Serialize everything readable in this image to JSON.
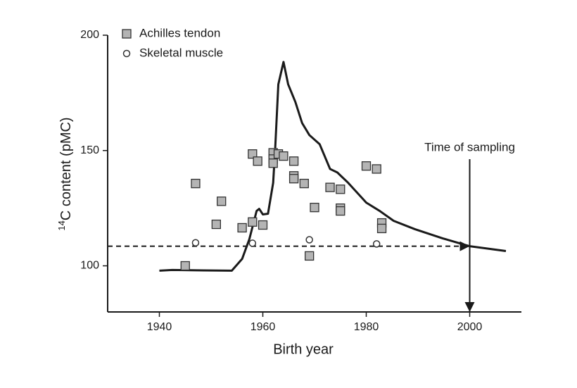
{
  "chart_data": {
    "type": "scatter",
    "x_label": "Birth year",
    "y_label": {
      "superscript": "14",
      "text": "C content (pMC)"
    },
    "xlim": [
      1930,
      2010
    ],
    "ylim": [
      80,
      200
    ],
    "xticks": [
      1940,
      1960,
      1980,
      2000
    ],
    "yticks": [
      100,
      150,
      200
    ],
    "legend": "upper left",
    "series": [
      {
        "name": "Achilles tendon",
        "marker": "square",
        "color": "#b4b4b4",
        "x": [
          1945,
          1947,
          1951,
          1952,
          1956,
          1958,
          1958,
          1959,
          1960,
          1962,
          1962,
          1962,
          1963,
          1964,
          1966,
          1966,
          1966,
          1968,
          1969,
          1970,
          1973,
          1975,
          1975,
          1975,
          1980,
          1982,
          1983,
          1983
        ],
        "values": [
          100,
          135.7,
          118,
          128,
          116.5,
          148.5,
          119,
          145.4,
          117.7,
          149,
          146.3,
          144.5,
          148.5,
          147.6,
          145.4,
          139,
          137.8,
          135.7,
          104.3,
          125.3,
          134,
          133.2,
          125,
          123.8,
          143.3,
          142,
          118.6,
          116.2
        ]
      },
      {
        "name": "Skeletal muscle",
        "marker": "circle",
        "color": "#ffffff",
        "x": [
          1947,
          1958,
          1969,
          1982
        ],
        "values": [
          110,
          109.8,
          111.3,
          109.5
        ]
      }
    ],
    "line": {
      "color": "#1a1a1a",
      "x": [
        1940,
        1942.5,
        1948.6,
        1954,
        1956,
        1957.4,
        1958.8,
        1959.3,
        1960,
        1961,
        1962,
        1962.4,
        1963,
        1964,
        1964.9,
        1966.3,
        1967.6,
        1969,
        1971,
        1973,
        1974.4,
        1976.5,
        1980,
        1982.6,
        1985.3,
        1989.4,
        1994.8,
        2000,
        2007
      ],
      "values": [
        97.9,
        98.2,
        98,
        97.9,
        103,
        111.6,
        123.8,
        124.7,
        122.3,
        122.6,
        136,
        151.2,
        178.7,
        188.4,
        178.7,
        171,
        161.9,
        156.7,
        152.7,
        142,
        140.5,
        136,
        127.4,
        123.8,
        119.5,
        115.9,
        111.9,
        108.5,
        106.4
      ]
    },
    "reference_line": {
      "y": 108.5,
      "x": [
        1930,
        2000
      ]
    },
    "sampling": {
      "label": "Time of sampling",
      "x": 2000
    }
  }
}
